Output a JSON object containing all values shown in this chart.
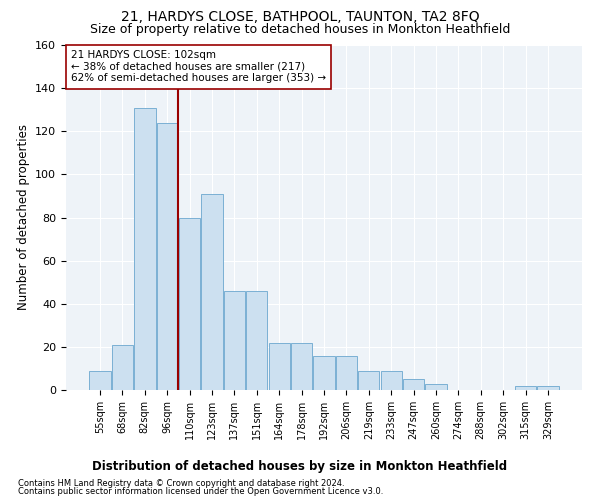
{
  "title": "21, HARDYS CLOSE, BATHPOOL, TAUNTON, TA2 8FQ",
  "subtitle": "Size of property relative to detached houses in Monkton Heathfield",
  "xlabel": "Distribution of detached houses by size in Monkton Heathfield",
  "ylabel": "Number of detached properties",
  "categories": [
    "55sqm",
    "68sqm",
    "82sqm",
    "96sqm",
    "110sqm",
    "123sqm",
    "137sqm",
    "151sqm",
    "164sqm",
    "178sqm",
    "192sqm",
    "206sqm",
    "219sqm",
    "233sqm",
    "247sqm",
    "260sqm",
    "274sqm",
    "288sqm",
    "302sqm",
    "315sqm",
    "329sqm"
  ],
  "values": [
    9,
    21,
    131,
    124,
    80,
    91,
    46,
    46,
    22,
    22,
    16,
    16,
    9,
    9,
    5,
    3,
    0,
    0,
    0,
    2,
    2
  ],
  "bar_color": "#cce0f0",
  "bar_edge_color": "#7ab0d4",
  "vline_x": 3.5,
  "vline_color": "#990000",
  "annotation_text": "21 HARDYS CLOSE: 102sqm\n← 38% of detached houses are smaller (217)\n62% of semi-detached houses are larger (353) →",
  "annotation_box_color": "#ffffff",
  "annotation_box_edge": "#990000",
  "footnote1": "Contains HM Land Registry data © Crown copyright and database right 2024.",
  "footnote2": "Contains public sector information licensed under the Open Government Licence v3.0.",
  "bg_color": "#ffffff",
  "plot_bg_color": "#eef3f8",
  "ylim": [
    0,
    160
  ],
  "yticks": [
    0,
    20,
    40,
    60,
    80,
    100,
    120,
    140,
    160
  ],
  "grid_color": "#ffffff",
  "title_fontsize": 10,
  "subtitle_fontsize": 9,
  "xlabel_fontsize": 8.5,
  "ylabel_fontsize": 8.5,
  "annot_fontsize": 7.5
}
